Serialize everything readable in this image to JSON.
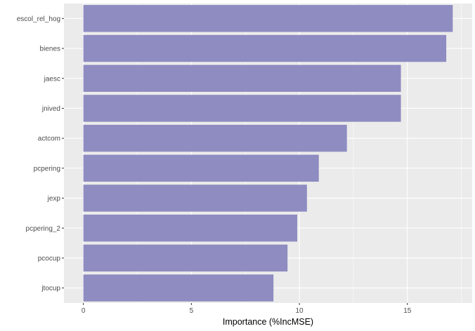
{
  "colors": {
    "panel_background": "#ebebeb",
    "gridline": "#ffffff",
    "bar_fill": "#8e8cc1",
    "tick_mark": "#333333"
  },
  "chart_data": {
    "type": "bar",
    "orientation": "horizontal",
    "categories": [
      "escol_rel_hog",
      "bienes",
      "jaesc",
      "jnived",
      "actcom",
      "pcpering",
      "jexp",
      "pcpering_2",
      "pcocup",
      "jtocup"
    ],
    "values": [
      17.1,
      16.8,
      14.7,
      14.7,
      12.2,
      10.9,
      10.35,
      9.9,
      9.45,
      8.8
    ],
    "xlabel": "Importance (%IncMSE)",
    "ylabel": "",
    "x_ticks": [
      0,
      5,
      10,
      15
    ],
    "xlim": [
      -0.9,
      18.0
    ],
    "grid": true
  }
}
